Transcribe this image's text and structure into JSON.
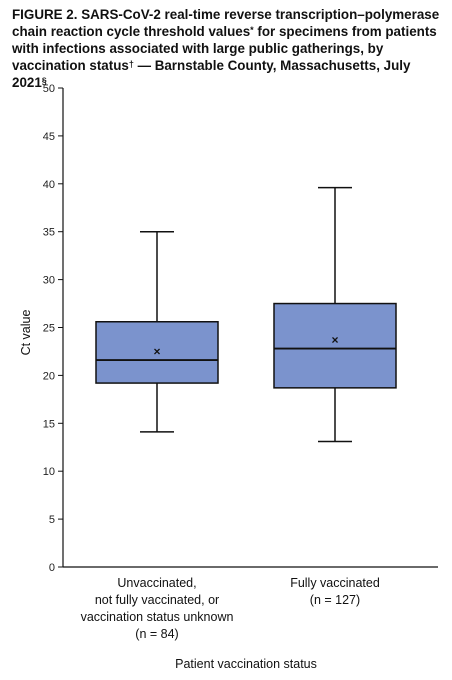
{
  "figure": {
    "label": "FIGURE 2.",
    "title_main": " SARS-CoV-2 real-time reverse transcription–polymerase chain reaction cycle threshold values",
    "title_mark1": "*",
    "title_mid": " for specimens from patients with infections associated with large public gatherings, by vaccination status",
    "title_mark2": "†",
    "title_end": " — Barnstable County, Massachusetts, July 2021",
    "title_mark3": "§"
  },
  "chart_data": {
    "type": "boxplot",
    "ylabel": "Ct value",
    "xlabel": "Patient vaccination status",
    "ylim": [
      0,
      50
    ],
    "yticks": [
      0,
      5,
      10,
      15,
      20,
      25,
      30,
      35,
      40,
      45,
      50
    ],
    "mean_marker": "×",
    "colors": {
      "box_fill": "#7b93cd",
      "stroke": "#111111"
    },
    "groups": [
      {
        "label_lines": [
          "Unvaccinated,",
          "not fully vaccinated, or",
          "vaccination status unknown",
          "(n = 84)"
        ],
        "min": 14.1,
        "q1": 19.2,
        "median": 21.6,
        "q3": 25.6,
        "max": 35.0,
        "mean": 22.5
      },
      {
        "label_lines": [
          "Fully vaccinated",
          "(n = 127)"
        ],
        "min": 13.1,
        "q1": 18.7,
        "median": 22.8,
        "q3": 27.5,
        "max": 39.6,
        "mean": 23.7
      }
    ]
  }
}
